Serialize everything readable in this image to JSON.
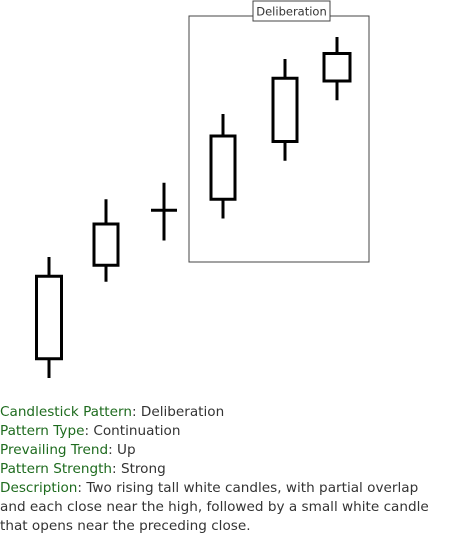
{
  "chart_data": {
    "type": "candlestick",
    "candles": [
      {
        "open": 7.0,
        "close": 10.0,
        "high": 10.7,
        "low": 6.3,
        "color": "white"
      },
      {
        "open": 10.4,
        "close": 11.9,
        "high": 12.8,
        "low": 9.8,
        "color": "white"
      },
      {
        "open": 12.4,
        "close": 12.4,
        "high": 13.4,
        "low": 11.3,
        "color": "doji"
      },
      {
        "open": 12.8,
        "close": 15.1,
        "high": 15.9,
        "low": 12.1,
        "color": "white"
      },
      {
        "open": 14.9,
        "close": 17.2,
        "high": 17.9,
        "low": 14.2,
        "color": "white"
      },
      {
        "open": 17.1,
        "close": 18.1,
        "high": 18.7,
        "low": 16.4,
        "color": "white"
      }
    ],
    "annotation": {
      "label": "Deliberation",
      "highlight_candles": [
        3,
        4,
        5
      ]
    }
  },
  "info": {
    "pattern_label": "Candlestick Pattern",
    "pattern_value": "Deliberation",
    "type_label": "Pattern Type",
    "type_value": "Continuation",
    "trend_label": "Prevailing Trend",
    "trend_value": "Up",
    "strength_label": "Pattern Strength",
    "strength_value": "Strong",
    "description_label": "Description",
    "description_value": "Two rising tall white candles, with partial overlap and each close near the high, followed by a small white candle that opens near the preceding close."
  }
}
